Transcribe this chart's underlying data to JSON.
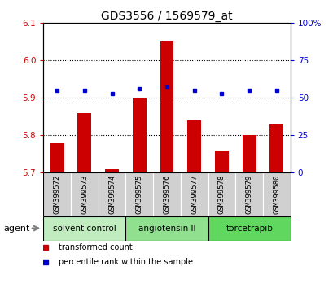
{
  "title": "GDS3556 / 1569579_at",
  "samples": [
    "GSM399572",
    "GSM399573",
    "GSM399574",
    "GSM399575",
    "GSM399576",
    "GSM399577",
    "GSM399578",
    "GSM399579",
    "GSM399580"
  ],
  "transformed_count": [
    5.78,
    5.86,
    5.71,
    5.9,
    6.05,
    5.84,
    5.76,
    5.8,
    5.83
  ],
  "percentile_rank": [
    55,
    55,
    53,
    56,
    57,
    55,
    53,
    55,
    55
  ],
  "ylim_left": [
    5.7,
    6.1
  ],
  "ylim_right": [
    0,
    100
  ],
  "yticks_left": [
    5.7,
    5.8,
    5.9,
    6.0,
    6.1
  ],
  "yticks_right": [
    0,
    25,
    50,
    75,
    100
  ],
  "ytick_labels_right": [
    "0",
    "25",
    "50",
    "75",
    "100%"
  ],
  "groups": [
    {
      "label": "solvent control",
      "indices": [
        0,
        1,
        2
      ],
      "color": "#c0ecc0"
    },
    {
      "label": "angiotensin II",
      "indices": [
        3,
        4,
        5
      ],
      "color": "#90e090"
    },
    {
      "label": "torcetrapib",
      "indices": [
        6,
        7,
        8
      ],
      "color": "#60d860"
    }
  ],
  "bar_color": "#cc0000",
  "dot_color": "#0000cc",
  "agent_label": "agent",
  "legend_items": [
    {
      "label": "transformed count",
      "color": "#cc0000"
    },
    {
      "label": "percentile rank within the sample",
      "color": "#0000cc"
    }
  ],
  "grid_yticks": [
    5.8,
    5.9,
    6.0
  ],
  "title_fontsize": 10,
  "tick_fontsize": 7.5,
  "label_fontsize": 6.5,
  "group_fontsize": 7.5,
  "legend_fontsize": 7
}
